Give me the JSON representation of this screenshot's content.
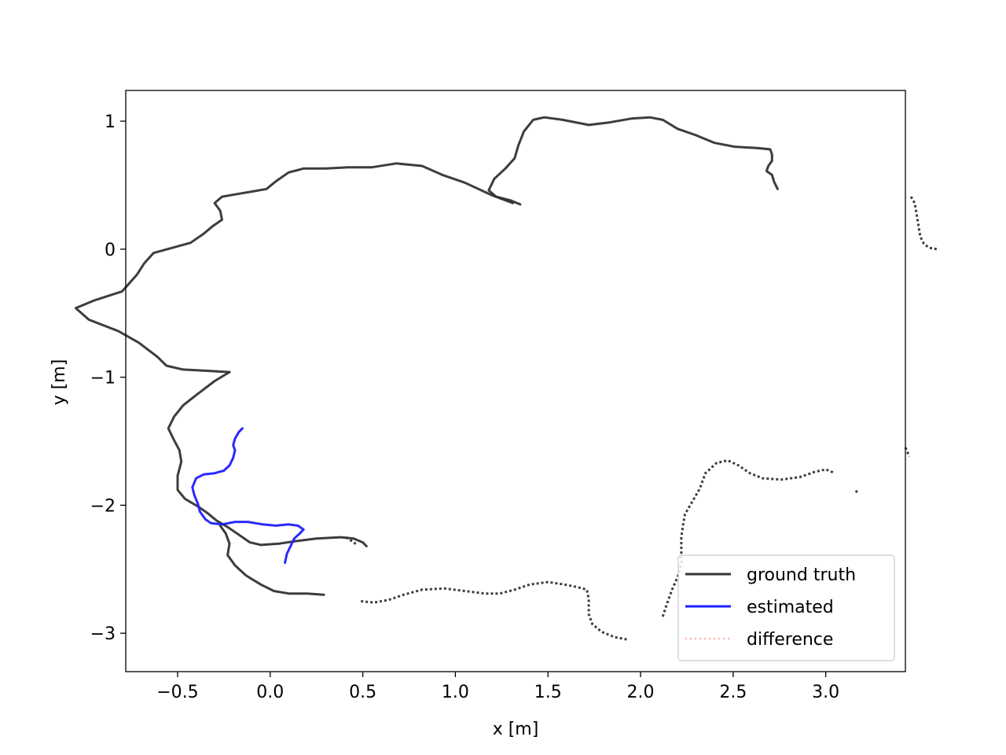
{
  "chart_data": {
    "type": "line",
    "title": "",
    "xlabel": "x [m]",
    "ylabel": "y [m]",
    "xlim": [
      -0.78,
      3.43
    ],
    "ylim": [
      -3.3,
      1.24
    ],
    "xticks": [
      {
        "value": -0.5,
        "label": "−0.5"
      },
      {
        "value": 0.0,
        "label": "0.0"
      },
      {
        "value": 0.5,
        "label": "0.5"
      },
      {
        "value": 1.0,
        "label": "1.0"
      },
      {
        "value": 1.5,
        "label": "1.5"
      },
      {
        "value": 2.0,
        "label": "2.0"
      },
      {
        "value": 2.5,
        "label": "2.5"
      },
      {
        "value": 3.0,
        "label": "3.0"
      }
    ],
    "yticks": [
      {
        "value": 1,
        "label": "1"
      },
      {
        "value": 0,
        "label": "0"
      },
      {
        "value": -1,
        "label": "−1"
      },
      {
        "value": -2,
        "label": "−2"
      },
      {
        "value": -3,
        "label": "−3"
      }
    ],
    "grid": false,
    "legend_position": "bottom-right",
    "series": [
      {
        "name": "ground truth",
        "color": "#333333",
        "style": "solid",
        "segments": [
          [
            [
              1.35,
              0.35
            ],
            [
              1.3,
              0.38
            ],
            [
              1.22,
              0.41
            ],
            [
              1.18,
              0.46
            ],
            [
              1.21,
              0.55
            ],
            [
              1.27,
              0.63
            ],
            [
              1.32,
              0.71
            ],
            [
              1.34,
              0.81
            ],
            [
              1.37,
              0.92
            ],
            [
              1.42,
              1.01
            ],
            [
              1.48,
              1.03
            ],
            [
              1.58,
              1.01
            ],
            [
              1.72,
              0.97
            ],
            [
              1.83,
              0.99
            ],
            [
              1.95,
              1.02
            ],
            [
              2.05,
              1.03
            ],
            [
              2.12,
              1.01
            ],
            [
              2.2,
              0.94
            ],
            [
              2.3,
              0.89
            ],
            [
              2.4,
              0.83
            ],
            [
              2.51,
              0.8
            ],
            [
              2.63,
              0.79
            ],
            [
              2.7,
              0.78
            ],
            [
              2.71,
              0.74
            ],
            [
              2.71,
              0.69
            ],
            [
              2.69,
              0.65
            ],
            [
              2.68,
              0.61
            ],
            [
              2.71,
              0.58
            ],
            [
              2.72,
              0.53
            ],
            [
              2.74,
              0.47
            ]
          ],
          [
            [
              1.31,
              0.36
            ],
            [
              1.2,
              0.42
            ],
            [
              1.05,
              0.52
            ],
            [
              0.93,
              0.58
            ],
            [
              0.82,
              0.65
            ],
            [
              0.68,
              0.67
            ],
            [
              0.55,
              0.64
            ],
            [
              0.42,
              0.64
            ],
            [
              0.3,
              0.63
            ],
            [
              0.18,
              0.63
            ],
            [
              0.1,
              0.6
            ],
            [
              0.03,
              0.53
            ],
            [
              -0.02,
              0.47
            ],
            [
              -0.1,
              0.45
            ],
            [
              -0.18,
              0.43
            ],
            [
              -0.26,
              0.41
            ],
            [
              -0.3,
              0.36
            ],
            [
              -0.27,
              0.3
            ],
            [
              -0.26,
              0.23
            ],
            [
              -0.31,
              0.18
            ],
            [
              -0.36,
              0.12
            ],
            [
              -0.43,
              0.05
            ],
            [
              -0.53,
              0.01
            ],
            [
              -0.63,
              -0.03
            ],
            [
              -0.68,
              -0.11
            ],
            [
              -0.72,
              -0.2
            ],
            [
              -0.8,
              -0.33
            ],
            [
              -0.95,
              -0.4
            ],
            [
              -1.05,
              -0.46
            ],
            [
              -0.98,
              -0.55
            ],
            [
              -0.82,
              -0.64
            ],
            [
              -0.71,
              -0.73
            ],
            [
              -0.61,
              -0.84
            ],
            [
              -0.56,
              -0.91
            ],
            [
              -0.47,
              -0.94
            ],
            [
              -0.34,
              -0.95
            ],
            [
              -0.22,
              -0.96
            ]
          ],
          [
            [
              -0.22,
              -0.96
            ],
            [
              -0.3,
              -1.03
            ],
            [
              -0.4,
              -1.14
            ],
            [
              -0.47,
              -1.22
            ],
            [
              -0.52,
              -1.31
            ],
            [
              -0.55,
              -1.4
            ],
            [
              -0.52,
              -1.49
            ],
            [
              -0.49,
              -1.57
            ],
            [
              -0.48,
              -1.66
            ],
            [
              -0.5,
              -1.77
            ],
            [
              -0.5,
              -1.88
            ],
            [
              -0.46,
              -1.95
            ],
            [
              -0.39,
              -2.01
            ],
            [
              -0.34,
              -2.06
            ],
            [
              -0.29,
              -2.12
            ],
            [
              -0.23,
              -2.17
            ],
            [
              -0.18,
              -2.22
            ],
            [
              -0.11,
              -2.29
            ],
            [
              -0.05,
              -2.31
            ],
            [
              0.05,
              -2.3
            ],
            [
              0.14,
              -2.28
            ],
            [
              0.25,
              -2.26
            ],
            [
              0.38,
              -2.25
            ],
            [
              0.45,
              -2.26
            ],
            [
              0.5,
              -2.29
            ],
            [
              0.52,
              -2.32
            ]
          ],
          [
            [
              -0.27,
              -2.16
            ],
            [
              -0.24,
              -2.22
            ],
            [
              -0.22,
              -2.3
            ],
            [
              -0.23,
              -2.39
            ],
            [
              -0.19,
              -2.47
            ],
            [
              -0.13,
              -2.55
            ],
            [
              -0.05,
              -2.62
            ],
            [
              0.02,
              -2.67
            ],
            [
              0.1,
              -2.69
            ],
            [
              0.2,
              -2.69
            ],
            [
              0.29,
              -2.7
            ]
          ]
        ],
        "dotted": [
          [
            [
              0.49,
              -2.75
            ],
            [
              0.56,
              -2.76
            ],
            [
              0.64,
              -2.74
            ],
            [
              0.72,
              -2.7
            ],
            [
              0.82,
              -2.66
            ],
            [
              0.94,
              -2.65
            ],
            [
              1.05,
              -2.67
            ],
            [
              1.16,
              -2.69
            ],
            [
              1.24,
              -2.69
            ],
            [
              1.32,
              -2.66
            ],
            [
              1.4,
              -2.62
            ],
            [
              1.5,
              -2.6
            ],
            [
              1.59,
              -2.62
            ],
            [
              1.66,
              -2.64
            ],
            [
              1.71,
              -2.66
            ],
            [
              1.72,
              -2.73
            ],
            [
              1.72,
              -2.85
            ],
            [
              1.74,
              -2.93
            ],
            [
              1.79,
              -2.99
            ],
            [
              1.86,
              -3.03
            ],
            [
              1.93,
              -3.05
            ]
          ],
          [
            [
              2.12,
              -2.87
            ],
            [
              2.14,
              -2.78
            ],
            [
              2.17,
              -2.66
            ],
            [
              2.2,
              -2.56
            ],
            [
              2.22,
              -2.45
            ],
            [
              2.22,
              -2.34
            ],
            [
              2.22,
              -2.25
            ],
            [
              2.23,
              -2.15
            ],
            [
              2.24,
              -2.07
            ],
            [
              2.28,
              -1.97
            ],
            [
              2.32,
              -1.87
            ],
            [
              2.35,
              -1.75
            ],
            [
              2.41,
              -1.67
            ],
            [
              2.47,
              -1.65
            ],
            [
              2.53,
              -1.69
            ],
            [
              2.59,
              -1.75
            ],
            [
              2.66,
              -1.79
            ],
            [
              2.76,
              -1.8
            ],
            [
              2.86,
              -1.78
            ],
            [
              2.94,
              -1.74
            ],
            [
              3.0,
              -1.72
            ],
            [
              3.05,
              -1.75
            ]
          ],
          [
            [
              3.16,
              -1.89
            ],
            [
              3.18,
              -1.9
            ]
          ],
          [
            [
              3.43,
              -1.55
            ],
            [
              3.44,
              -1.58
            ],
            [
              3.45,
              -1.62
            ]
          ],
          [
            [
              3.46,
              0.41
            ],
            [
              3.48,
              0.36
            ],
            [
              3.49,
              0.28
            ],
            [
              3.5,
              0.19
            ],
            [
              3.51,
              0.1
            ],
            [
              3.53,
              0.04
            ],
            [
              3.56,
              0.01
            ],
            [
              3.6,
              0.0
            ]
          ],
          [
            [
              0.41,
              -2.25
            ],
            [
              0.44,
              -2.28
            ],
            [
              0.47,
              -2.31
            ]
          ]
        ]
      },
      {
        "name": "estimated",
        "color": "#1f1fff",
        "style": "solid",
        "segments": [
          [
            [
              -0.15,
              -1.4
            ],
            [
              -0.17,
              -1.43
            ],
            [
              -0.19,
              -1.48
            ],
            [
              -0.2,
              -1.53
            ],
            [
              -0.19,
              -1.57
            ],
            [
              -0.2,
              -1.63
            ],
            [
              -0.22,
              -1.69
            ],
            [
              -0.25,
              -1.73
            ],
            [
              -0.3,
              -1.75
            ],
            [
              -0.36,
              -1.76
            ],
            [
              -0.4,
              -1.79
            ],
            [
              -0.42,
              -1.86
            ],
            [
              -0.41,
              -1.92
            ],
            [
              -0.39,
              -1.99
            ],
            [
              -0.38,
              -2.05
            ],
            [
              -0.35,
              -2.11
            ],
            [
              -0.32,
              -2.14
            ],
            [
              -0.26,
              -2.15
            ],
            [
              -0.19,
              -2.13
            ],
            [
              -0.12,
              -2.13
            ],
            [
              -0.04,
              -2.15
            ],
            [
              0.03,
              -2.16
            ],
            [
              0.1,
              -2.15
            ],
            [
              0.15,
              -2.16
            ],
            [
              0.18,
              -2.19
            ],
            [
              0.16,
              -2.22
            ],
            [
              0.13,
              -2.26
            ],
            [
              0.11,
              -2.32
            ],
            [
              0.09,
              -2.38
            ],
            [
              0.08,
              -2.45
            ]
          ]
        ]
      },
      {
        "name": "difference",
        "color": "#ffb0b0",
        "style": "dotted",
        "segments": []
      }
    ],
    "legend": [
      {
        "label": "ground truth",
        "color": "#333333",
        "style": "solid"
      },
      {
        "label": "estimated",
        "color": "#1f1fff",
        "style": "solid"
      },
      {
        "label": "difference",
        "color": "#ffb0b0",
        "style": "dotted"
      }
    ]
  }
}
